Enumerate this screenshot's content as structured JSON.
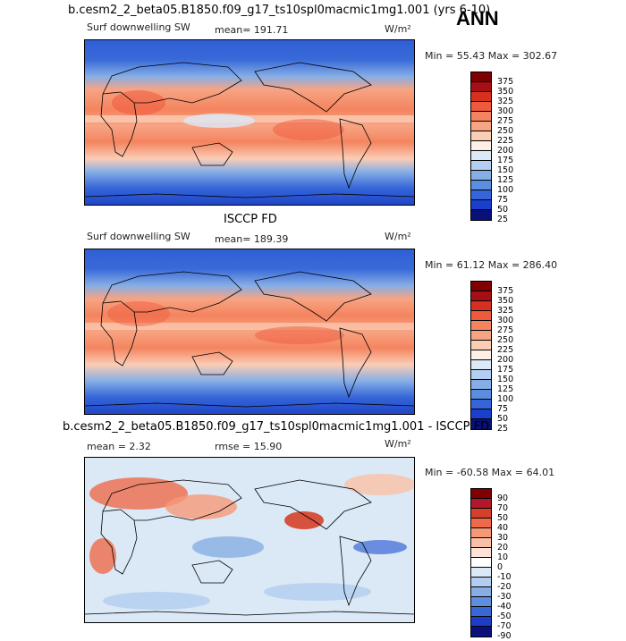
{
  "season": "ANN",
  "panels": [
    {
      "title": "b.cesm2_2_beta05.B1850.f09_g17_ts10spl0macmic1mg1.001 (yrs 6-10)",
      "left_label": "Surf downwelling SW",
      "center_label": "mean=  191.71",
      "units": "W/m²",
      "stats": "Min =  55.43 Max = 302.67",
      "colorbar_labels": [
        "375",
        "350",
        "325",
        "300",
        "275",
        "250",
        "225",
        "200",
        "175",
        "150",
        "125",
        "100",
        "75",
        "50",
        "25"
      ]
    },
    {
      "title": "ISCCP FD",
      "left_label": "Surf downwelling SW",
      "center_label": "mean=  189.39",
      "units": "W/m²",
      "stats": "Min =  61.12 Max = 286.40",
      "colorbar_labels": [
        "375",
        "350",
        "325",
        "300",
        "275",
        "250",
        "225",
        "200",
        "175",
        "150",
        "125",
        "100",
        "75",
        "50",
        "25"
      ]
    },
    {
      "title": "b.cesm2_2_beta05.B1850.f09_g17_ts10spl0macmic1mg1.001 - ISCCP FD",
      "left_label": "mean =    2.32",
      "center_label": "rmse =   15.90",
      "units": "W/m²",
      "stats": "Min = -60.58 Max =  64.01",
      "colorbar_labels": [
        "90",
        "70",
        "50",
        "40",
        "30",
        "20",
        "10",
        "0",
        "-10",
        "-20",
        "-30",
        "-40",
        "-50",
        "-70",
        "-90"
      ]
    }
  ],
  "colors": {
    "sw_scale": [
      "#7f0000",
      "#a50f15",
      "#d7301f",
      "#ef5a3c",
      "#f4845f",
      "#f7a483",
      "#fbcdb5",
      "#fdeee6",
      "#dce9f7",
      "#b3cef0",
      "#86aee6",
      "#5b8ee0",
      "#3565d8",
      "#1a3fcc",
      "#08107a"
    ],
    "diff_scale": [
      "#7f0000",
      "#b2182b",
      "#d6402b",
      "#ef6a4a",
      "#f69878",
      "#fac0a6",
      "#fde3d7",
      "#ffffff",
      "#dbe8f6",
      "#b2cdef",
      "#87aee4",
      "#5f8ede",
      "#3a67d6",
      "#1d3fc8",
      "#0a117a"
    ]
  }
}
